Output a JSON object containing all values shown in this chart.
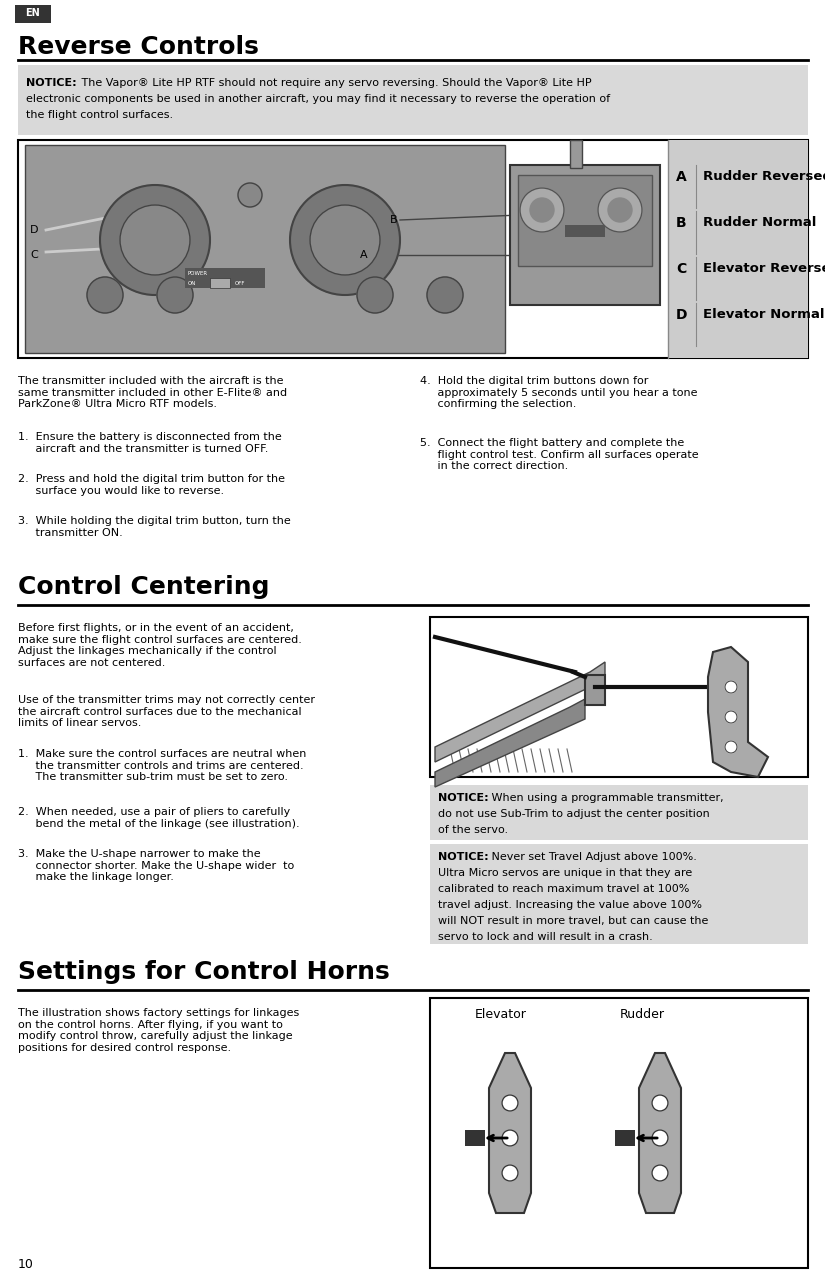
{
  "page_bg": "#ffffff",
  "en_tab_bg": "#333333",
  "en_tab_text": "EN",
  "en_tab_color": "#ffffff",
  "section1_title": "Reverse Controls",
  "section2_title": "Control Centering",
  "section3_title": "Settings for Control Horns",
  "notice1_bg": "#d9d9d9",
  "notice1_bold": "NOTICE:",
  "notice1_line1": " The Vapor® Lite HP RTF should not require any servo reversing. Should the Vapor® Lite HP",
  "notice1_line2": "electronic components be used in another aircraft, you may find it necessary to reverse the operation of",
  "notice1_line3": "the flight control surfaces.",
  "legend_items": [
    [
      "A",
      "Rudder Reversed"
    ],
    [
      "B",
      "Rudder Normal"
    ],
    [
      "C",
      "Elevator Reversed"
    ],
    [
      "D",
      "Elevator Normal"
    ]
  ],
  "legend_bg": "#cccccc",
  "transmitter_intro": "The transmitter included with the aircraft is the\nsame transmitter included in other E-Flite® and\nParkZone® Ultra Micro RTF models.",
  "steps_left": [
    "1.  Ensure the battery is disconnected from the\n     aircraft and the transmitter is turned OFF.",
    "2.  Press and hold the digital trim button for the\n     surface you would like to reverse.",
    "3.  While holding the digital trim button, turn the\n     transmitter ON."
  ],
  "steps_right": [
    "4.  Hold the digital trim buttons down for\n     approximately 5 seconds until you hear a tone\n     confirming the selection.",
    "5.  Connect the flight battery and complete the\n     flight control test. Confirm all surfaces operate\n     in the correct direction."
  ],
  "centering_para1": "Before first flights, or in the event of an accident,\nmake sure the flight control surfaces are centered.\nAdjust the linkages mechanically if the control\nsurfaces are not centered.",
  "centering_para2": "Use of the transmitter trims may not correctly center\nthe aircraft control surfaces due to the mechanical\nlimits of linear servos.",
  "centering_steps": [
    "1.  Make sure the control surfaces are neutral when\n     the transmitter controls and trims are centered.\n     The transmitter sub-trim must be set to zero.",
    "2.  When needed, use a pair of pliers to carefully\n     bend the metal of the linkage (see illustration).",
    "3.  Make the U-shape narrower to make the\n     connector shorter. Make the U-shape wider  to\n     make the linkage longer."
  ],
  "notice2_bold": "NOTICE:",
  "notice2_lines": [
    " When using a programmable transmitter,",
    "do not use Sub-Trim to adjust the center position",
    "of the servo."
  ],
  "notice3_bold": "NOTICE:",
  "notice3_lines": [
    " Never set Travel Adjust above 100%.",
    "Ultra Micro servos are unique in that they are",
    "calibrated to reach maximum travel at 100%",
    "travel adjust. Increasing the value above 100%",
    "will NOT result in more travel, but can cause the",
    "servo to lock and will result in a crash."
  ],
  "horns_para": "The illustration shows factory settings for linkages\non the control horns. After flying, if you want to\nmodify control throw, carefully adjust the linkage\npositions for desired control response.",
  "horns_labels": [
    "Elevator",
    "Rudder"
  ],
  "page_number": "10",
  "divider_color": "#000000",
  "text_color": "#000000",
  "notice_bg": "#d9d9d9",
  "img_border": "#000000",
  "img_gray": "#aaaaaa",
  "img_dark_gray": "#888888"
}
